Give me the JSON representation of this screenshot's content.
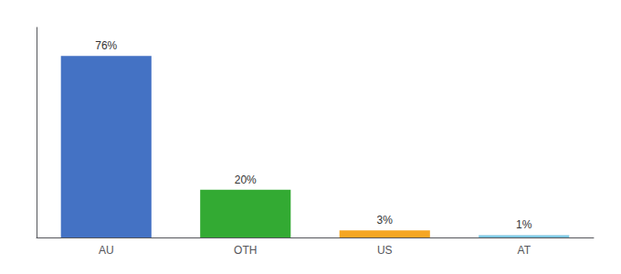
{
  "chart_data": {
    "type": "bar",
    "categories": [
      "AU",
      "OTH",
      "US",
      "AT"
    ],
    "values": [
      76,
      20,
      3,
      1
    ],
    "value_labels": [
      "76%",
      "20%",
      "3%",
      "1%"
    ],
    "data_labels": true,
    "colors": [
      "#4472c4",
      "#33aa33",
      "#f5a623",
      "#7ec8e3"
    ],
    "ylim": [
      0,
      88
    ],
    "tick_labels": "x",
    "grid": false
  }
}
